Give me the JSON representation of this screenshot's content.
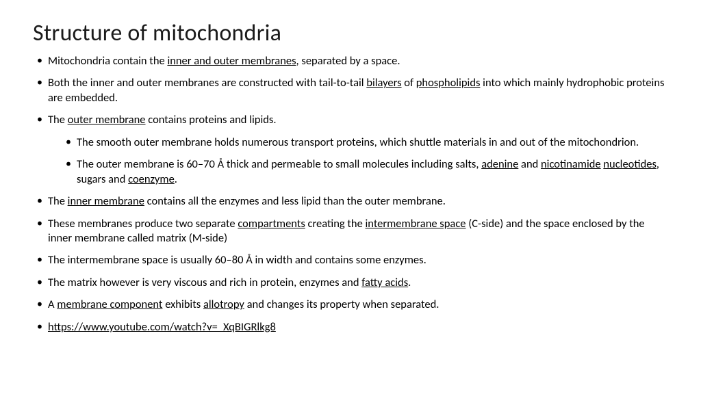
{
  "title": "Structure of mitochondria",
  "bullets": {
    "b1_pre": "Mitochondria contain the ",
    "b1_u1": "inner and outer membranes",
    "b1_post": ", separated by a space.",
    "b2_pre": "Both the inner and outer membranes are constructed with tail-to-tail ",
    "b2_u1": "bilayers",
    "b2_mid": " of ",
    "b2_u2": "phospholipids",
    "b2_post": " into which mainly hydrophobic proteins are embedded.",
    "b3_pre": "The ",
    "b3_u1": "outer membrane",
    "b3_post": " contains proteins and lipids.",
    "b3s1": "The smooth outer membrane holds numerous transport proteins, which shuttle materials in and out of the mitochondrion.",
    "b3s2_pre": "The outer membrane is 60–70 Å thick and permeable to small molecules including salts, ",
    "b3s2_u1": "adenine",
    "b3s2_m1": " and ",
    "b3s2_u2": "nicotinamide",
    "b3s2_sp": " ",
    "b3s2_u3": "nucleotides",
    "b3s2_m2": ", sugars and ",
    "b3s2_u4": "coenzyme",
    "b3s2_post": ".",
    "b4_pre": "The ",
    "b4_u1": "inner membrane",
    "b4_post": " contains all the enzymes and less lipid than the outer membrane.",
    "b5_pre": "These membranes produce two separate ",
    "b5_u1": "compartments",
    "b5_mid": " creating the ",
    "b5_u2": "intermembrane space",
    "b5_post": " (C-side) and the space enclosed by the inner membrane called matrix (M-side)",
    "b6": "The intermembrane space is usually 60–80 Å in width and contains some enzymes.",
    "b7_pre": "The matrix however is very viscous and rich in protein, enzymes and ",
    "b7_u1": "fatty acids",
    "b7_post": ".",
    "b8_pre": "A ",
    "b8_u1": "membrane component",
    "b8_mid": " exhibits ",
    "b8_u2": "allotropy",
    "b8_post": " and changes its property when separated.",
    "b9_u1": "https://www.youtube.com/watch?v=_XqBIGRlkg8"
  },
  "style": {
    "background": "#ffffff",
    "text_color": "#000000",
    "title_fontsize": 34,
    "body_fontsize": 16.5,
    "font_family": "Calibri"
  }
}
